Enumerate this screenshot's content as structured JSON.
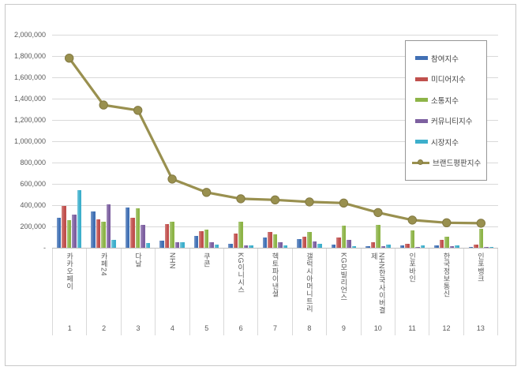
{
  "chart_data": {
    "type": "bar",
    "subtype": "grouped-bars-with-line-overlay",
    "title": "",
    "categories": [
      "카카오페이",
      "카페24",
      "다날",
      "NHN",
      "쿠콘",
      "KG이니시스",
      "헥토파이낸셜",
      "갤럭시아머니트리",
      "KG모빌리언스",
      "NHN한국사이버결제",
      "인포바인",
      "한국정보통신",
      "인포뱅크"
    ],
    "ranks": [
      "1",
      "2",
      "3",
      "4",
      "5",
      "6",
      "7",
      "8",
      "9",
      "10",
      "11",
      "12",
      "13"
    ],
    "series": [
      {
        "name": "참여지수",
        "type": "bar",
        "color": "#4170b4",
        "values": [
          280000,
          340000,
          380000,
          65000,
          110000,
          35000,
          100000,
          85000,
          30000,
          15000,
          20000,
          20000,
          8000
        ]
      },
      {
        "name": "미디어지수",
        "type": "bar",
        "color": "#c0504d",
        "values": [
          390000,
          270000,
          280000,
          225000,
          155000,
          135000,
          150000,
          105000,
          95000,
          55000,
          40000,
          75000,
          30000
        ]
      },
      {
        "name": "소통지수",
        "type": "bar",
        "color": "#8db448",
        "values": [
          260000,
          245000,
          370000,
          245000,
          170000,
          245000,
          125000,
          145000,
          205000,
          215000,
          165000,
          105000,
          175000
        ]
      },
      {
        "name": "커뮤니티지수",
        "type": "bar",
        "color": "#7d60a0",
        "values": [
          310000,
          410000,
          215000,
          55000,
          55000,
          25000,
          55000,
          60000,
          75000,
          15000,
          10000,
          12000,
          10000
        ]
      },
      {
        "name": "시장지수",
        "type": "bar",
        "color": "#3dafcc",
        "values": [
          540000,
          75000,
          45000,
          55000,
          30000,
          20000,
          20000,
          35000,
          15000,
          30000,
          25000,
          23000,
          7000
        ]
      },
      {
        "name": "브랜드평판지수",
        "type": "line",
        "color": "#99904f",
        "marker_stroke": "#837a42",
        "values": [
          1780000,
          1340000,
          1290000,
          645000,
          520000,
          460000,
          450000,
          430000,
          420000,
          330000,
          260000,
          235000,
          230000
        ]
      }
    ],
    "y_axis": {
      "min": 0,
      "max": 2000000,
      "step": 200000,
      "tick_labels_top_to_bottom": [
        "2,000,000",
        "1,800,000",
        "1,600,000",
        "1,400,000",
        "1,200,000",
        "1,000,000",
        "800,000",
        "600,000",
        "400,000",
        "200,000",
        "-"
      ]
    },
    "grid": true,
    "legend_position": "top-right",
    "colors_meta": {
      "gridline": "#d9d9d9",
      "axis_line": "#bfbfbf",
      "text": "#595959",
      "frame_border": "#c8c8c8",
      "legend_border": "#969696"
    }
  }
}
